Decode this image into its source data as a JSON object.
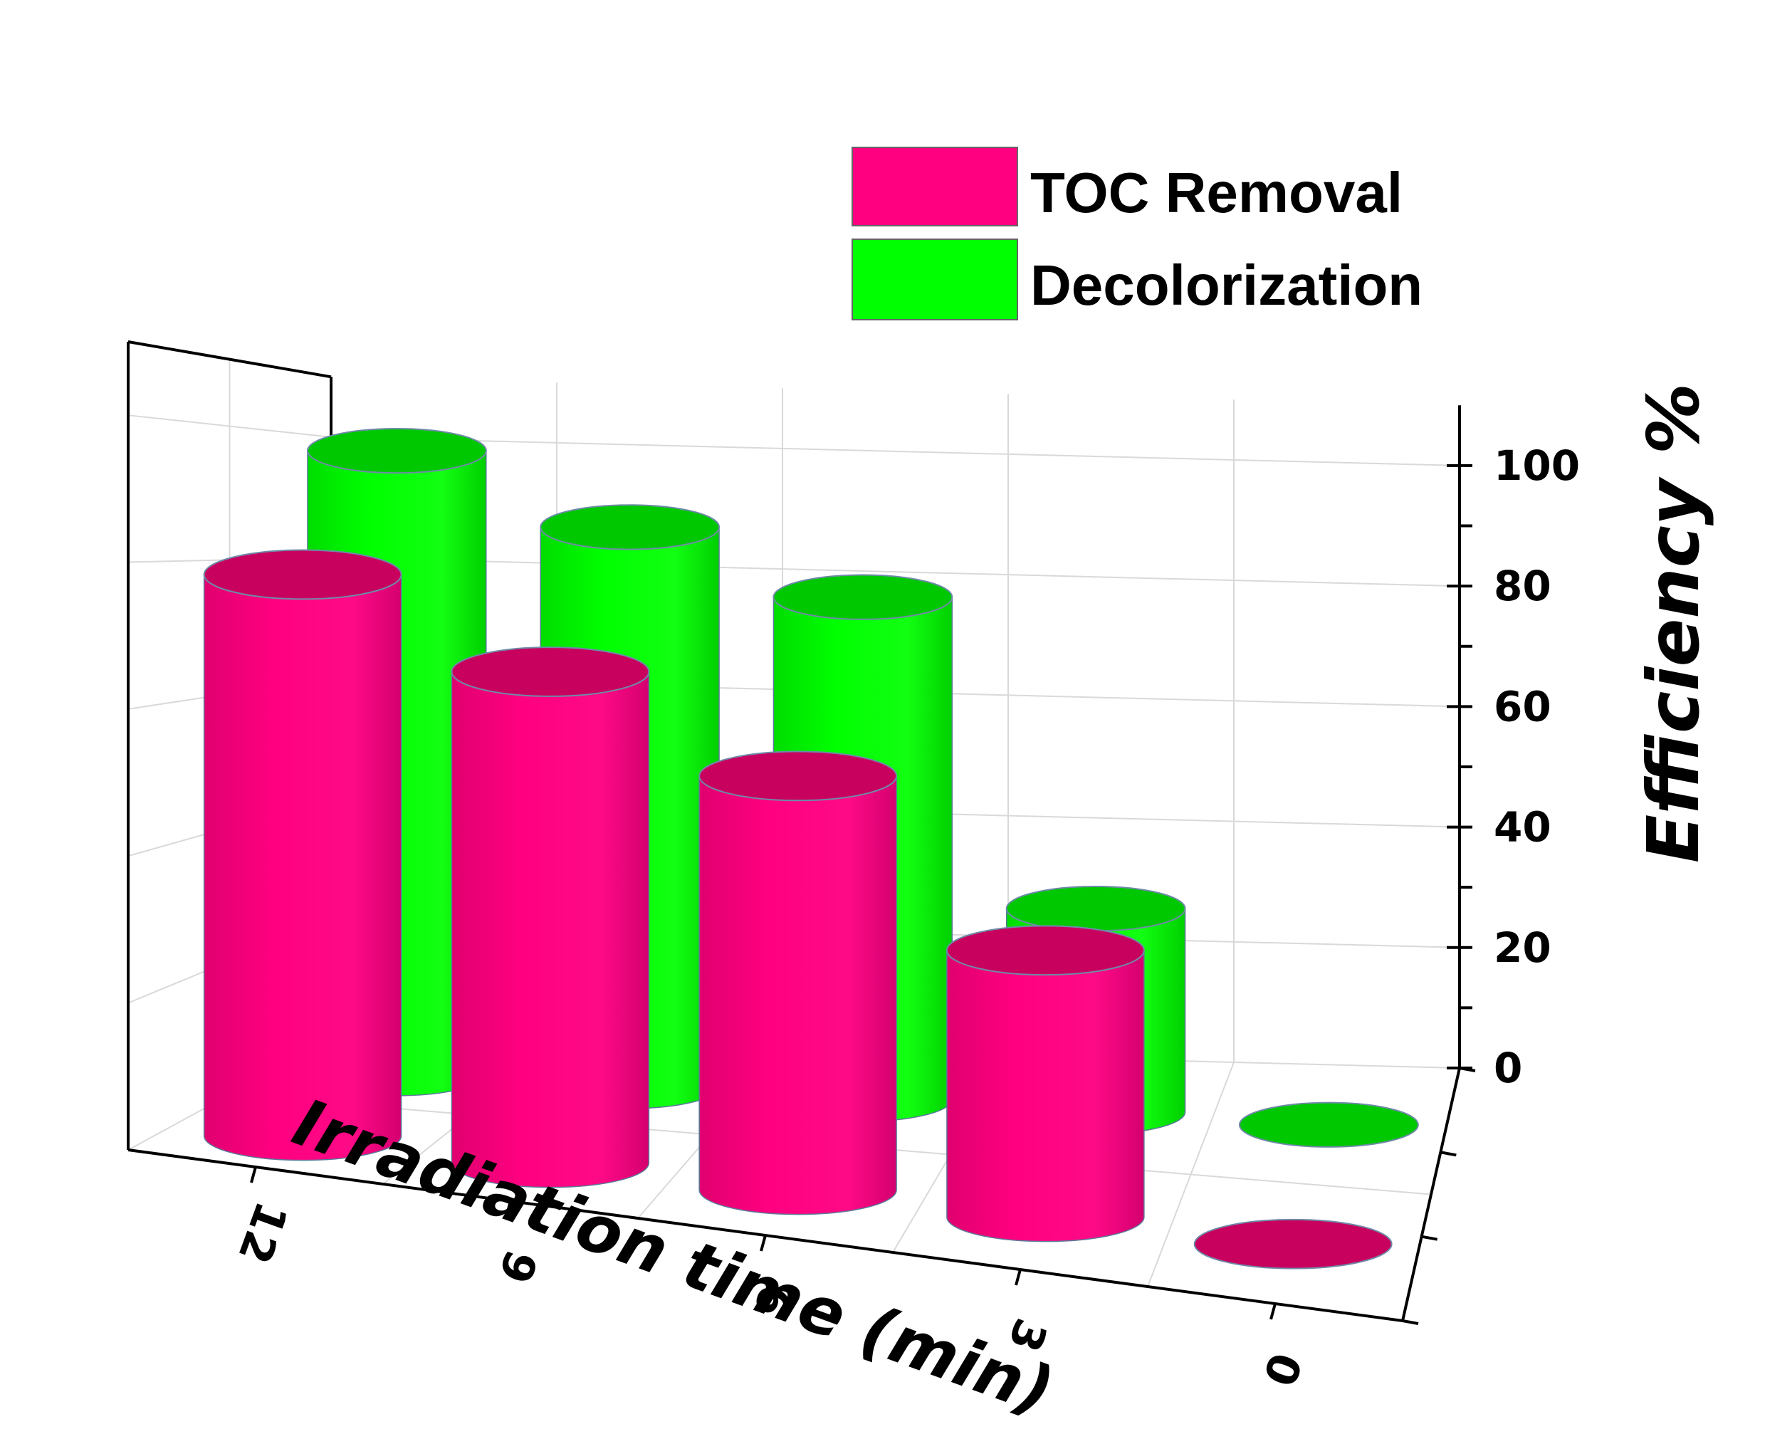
{
  "chart_data": {
    "type": "bar",
    "style": "3d-cylinder",
    "categories": [
      "12",
      "9",
      "6",
      "3",
      "0"
    ],
    "series": [
      {
        "name": "TOC Removal",
        "values": [
          80,
          70,
          59,
          38,
          0
        ],
        "color": "#ff0080",
        "top_color": "#c8005e"
      },
      {
        "name": "Decolorization",
        "values": [
          98,
          88,
          79,
          32,
          0
        ],
        "color": "#00ff00",
        "top_color": "#00c800"
      }
    ],
    "xlabel": "Irradiation time (min)",
    "ylabel": "Efficiency %",
    "ylim": [
      0,
      110
    ],
    "yticks": [
      "0",
      "20",
      "40",
      "60",
      "80",
      "100"
    ],
    "legend_position": "top-right",
    "grid": true
  }
}
